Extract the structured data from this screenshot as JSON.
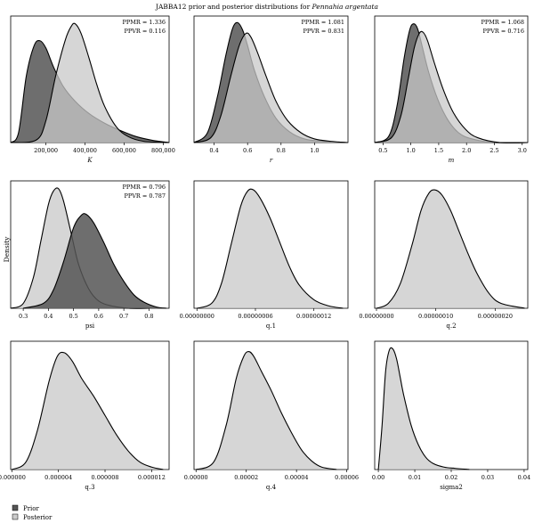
{
  "figure": {
    "title_plain": "JABBA12 prior and posterior distributions for ",
    "title_species": "Pennahia argentata",
    "ylabel": "Density"
  },
  "legend": {
    "items": [
      {
        "label": "Prior",
        "color": "#555555"
      },
      {
        "label": "Posterior",
        "color": "#cccccc"
      }
    ]
  },
  "colors": {
    "prior": "#555555",
    "posterior": "#c8c8c8",
    "outline": "#000000",
    "background": "#ffffff"
  },
  "chart_data": [
    {
      "type": "area",
      "xlabel": "K",
      "xlabel_italic": true,
      "xlim": [
        20000,
        830000
      ],
      "xticks": [
        200000,
        400000,
        600000,
        800000
      ],
      "xtick_labels": [
        "200,000",
        "400,000",
        "600,000",
        "800,000"
      ],
      "annotations": [
        "PPMR = 1.336",
        "PPVR = 0.116"
      ],
      "series": [
        {
          "name": "Prior",
          "role": "prior",
          "x": [
            20000,
            60000,
            100000,
            140000,
            170000,
            200000,
            240000,
            290000,
            350000,
            420000,
            500000,
            580000,
            660000,
            740000,
            830000
          ],
          "y": [
            0.0,
            0.08,
            0.55,
            0.8,
            0.84,
            0.78,
            0.62,
            0.46,
            0.34,
            0.24,
            0.16,
            0.1,
            0.05,
            0.02,
            0.0
          ]
        },
        {
          "name": "Posterior",
          "role": "posterior",
          "x": [
            20000,
            150000,
            200000,
            250000,
            300000,
            330000,
            350000,
            380000,
            420000,
            460000,
            500000,
            560000,
            620000,
            700000,
            830000
          ],
          "y": [
            0.0,
            0.02,
            0.18,
            0.55,
            0.85,
            0.96,
            0.98,
            0.9,
            0.7,
            0.48,
            0.3,
            0.13,
            0.05,
            0.01,
            0.0
          ]
        }
      ]
    },
    {
      "type": "area",
      "xlabel": "r",
      "xlabel_italic": true,
      "xlim": [
        0.28,
        1.2
      ],
      "xticks": [
        0.4,
        0.6,
        0.8,
        1.0
      ],
      "xtick_labels": [
        "0.4",
        "0.6",
        "0.8",
        "1.0"
      ],
      "annotations": [
        "PPMR = 1.081",
        "PPVR = 0.831"
      ],
      "series": [
        {
          "name": "Prior",
          "role": "prior",
          "x": [
            0.28,
            0.36,
            0.42,
            0.47,
            0.51,
            0.54,
            0.57,
            0.6,
            0.64,
            0.7,
            0.77,
            0.85,
            0.94,
            1.05,
            1.2
          ],
          "y": [
            0.0,
            0.08,
            0.38,
            0.72,
            0.94,
            0.99,
            0.93,
            0.8,
            0.6,
            0.38,
            0.2,
            0.09,
            0.03,
            0.01,
            0.0
          ]
        },
        {
          "name": "Posterior",
          "role": "posterior",
          "x": [
            0.28,
            0.38,
            0.44,
            0.5,
            0.55,
            0.59,
            0.62,
            0.66,
            0.71,
            0.77,
            0.84,
            0.92,
            1.0,
            1.1,
            1.2
          ],
          "y": [
            0.0,
            0.04,
            0.22,
            0.55,
            0.8,
            0.9,
            0.87,
            0.74,
            0.55,
            0.34,
            0.18,
            0.08,
            0.03,
            0.01,
            0.0
          ]
        }
      ]
    },
    {
      "type": "area",
      "xlabel": "m",
      "xlabel_italic": true,
      "xlim": [
        0.35,
        3.1
      ],
      "xticks": [
        0.5,
        1.0,
        1.5,
        2.0,
        2.5,
        3.0
      ],
      "xtick_labels": [
        "0.5",
        "1.0",
        "1.5",
        "2.0",
        "2.5",
        "3.0"
      ],
      "annotations": [
        "PPMR = 1.068",
        "PPVR = 0.716"
      ],
      "series": [
        {
          "name": "Prior",
          "role": "prior",
          "x": [
            0.35,
            0.6,
            0.75,
            0.88,
            0.98,
            1.05,
            1.12,
            1.2,
            1.32,
            1.48,
            1.66,
            1.86,
            2.1,
            2.5,
            3.1
          ],
          "y": [
            0.0,
            0.05,
            0.3,
            0.7,
            0.93,
            0.98,
            0.94,
            0.8,
            0.58,
            0.36,
            0.19,
            0.08,
            0.03,
            0.0,
            0.0
          ]
        },
        {
          "name": "Posterior",
          "role": "posterior",
          "x": [
            0.35,
            0.65,
            0.82,
            0.95,
            1.06,
            1.15,
            1.22,
            1.3,
            1.42,
            1.58,
            1.76,
            1.98,
            2.2,
            2.6,
            3.1
          ],
          "y": [
            0.0,
            0.04,
            0.22,
            0.52,
            0.78,
            0.9,
            0.91,
            0.84,
            0.66,
            0.44,
            0.25,
            0.11,
            0.04,
            0.0,
            0.0
          ]
        }
      ]
    },
    {
      "type": "area",
      "xlabel": "psi",
      "xlabel_italic": false,
      "xlim": [
        0.25,
        0.88
      ],
      "xticks": [
        0.3,
        0.4,
        0.5,
        0.6,
        0.7,
        0.8
      ],
      "xtick_labels": [
        "0.3",
        "0.4",
        "0.5",
        "0.6",
        "0.7",
        "0.8"
      ],
      "annotations": [
        "PPMR = 0.796",
        "PPVR = 0.787"
      ],
      "series": [
        {
          "name": "Posterior",
          "role": "posterior",
          "x": [
            0.25,
            0.3,
            0.34,
            0.37,
            0.4,
            0.42,
            0.44,
            0.46,
            0.49,
            0.52,
            0.56,
            0.6,
            0.65,
            0.72,
            0.8
          ],
          "y": [
            0.0,
            0.04,
            0.25,
            0.55,
            0.85,
            0.96,
            0.98,
            0.88,
            0.62,
            0.36,
            0.16,
            0.06,
            0.02,
            0.0,
            0.0
          ]
        },
        {
          "name": "Prior",
          "role": "prior",
          "x": [
            0.3,
            0.38,
            0.42,
            0.46,
            0.5,
            0.53,
            0.55,
            0.58,
            0.62,
            0.66,
            0.7,
            0.74,
            0.78,
            0.83,
            0.87
          ],
          "y": [
            0.0,
            0.04,
            0.15,
            0.38,
            0.66,
            0.76,
            0.77,
            0.7,
            0.54,
            0.36,
            0.22,
            0.11,
            0.05,
            0.01,
            0.0
          ]
        }
      ]
    },
    {
      "type": "area",
      "xlabel": "q.1",
      "xlabel_italic": false,
      "xlim": [
        -3e-09,
        1.55e-07
      ],
      "xticks": [
        0.0,
        6e-08,
        1.2e-07
      ],
      "xtick_labels": [
        "0.00000000",
        "0.00000006",
        "0.00000012"
      ],
      "annotations": [],
      "series": [
        {
          "name": "Posterior",
          "role": "posterior",
          "x": [
            0.0,
            1.5e-08,
            2.5e-08,
            3.5e-08,
            4.5e-08,
            5.2e-08,
            5.8e-08,
            6.5e-08,
            7.5e-08,
            8.5e-08,
            9.5e-08,
            1.05e-07,
            1.2e-07,
            1.35e-07,
            1.5e-07
          ],
          "y": [
            0.0,
            0.04,
            0.2,
            0.52,
            0.84,
            0.96,
            0.97,
            0.9,
            0.74,
            0.54,
            0.34,
            0.19,
            0.07,
            0.02,
            0.0
          ]
        }
      ]
    },
    {
      "type": "area",
      "xlabel": "q.2",
      "xlabel_italic": false,
      "xlim": [
        -3e-09,
        2.55e-07
      ],
      "xticks": [
        0.0,
        1e-07,
        2e-07
      ],
      "xtick_labels": [
        "0.00000000",
        "0.00000010",
        "0.00000020"
      ],
      "annotations": [],
      "series": [
        {
          "name": "Posterior",
          "role": "posterior",
          "x": [
            0.0,
            2e-08,
            4e-08,
            6e-08,
            7.5e-08,
            8.8e-08,
            9.8e-08,
            1.1e-07,
            1.25e-07,
            1.4e-07,
            1.55e-07,
            1.7e-07,
            1.9e-07,
            2.1e-07,
            2.5e-07
          ],
          "y": [
            0.0,
            0.04,
            0.2,
            0.52,
            0.8,
            0.94,
            0.97,
            0.93,
            0.8,
            0.62,
            0.44,
            0.28,
            0.12,
            0.04,
            0.0
          ]
        }
      ]
    },
    {
      "type": "area",
      "xlabel": "q.3",
      "xlabel_italic": false,
      "xlim": [
        -1e-07,
        1.35e-05
      ],
      "xticks": [
        0.0,
        4e-06,
        8e-06,
        1.2e-05
      ],
      "xtick_labels": [
        "0.000000",
        "0.000004",
        "0.000008",
        "0.000012"
      ],
      "annotations": [],
      "series": [
        {
          "name": "Posterior",
          "role": "posterior",
          "x": [
            0.0,
            1.2e-06,
            2.2e-06,
            3.2e-06,
            3.9e-06,
            4.5e-06,
            5.2e-06,
            6e-06,
            7e-06,
            8e-06,
            9e-06,
            1e-05,
            1.1e-05,
            1.2e-05,
            1.3e-05
          ],
          "y": [
            0.0,
            0.06,
            0.32,
            0.72,
            0.92,
            0.95,
            0.88,
            0.74,
            0.6,
            0.44,
            0.28,
            0.15,
            0.06,
            0.02,
            0.0
          ]
        }
      ]
    },
    {
      "type": "area",
      "xlabel": "q.4",
      "xlabel_italic": false,
      "xlim": [
        -8e-07,
        6.05e-05
      ],
      "xticks": [
        0.0,
        2e-05,
        4e-05,
        6e-05
      ],
      "xtick_labels": [
        "0.00000",
        "0.00002",
        "0.00004",
        "0.00006"
      ],
      "annotations": [],
      "series": [
        {
          "name": "Posterior",
          "role": "posterior",
          "x": [
            0.0,
            7e-06,
            1.2e-05,
            1.6e-05,
            1.9e-05,
            2.1e-05,
            2.3e-05,
            2.6e-05,
            3e-05,
            3.4e-05,
            3.8e-05,
            4.2e-05,
            4.6e-05,
            5e-05,
            5.6e-05
          ],
          "y": [
            0.0,
            0.06,
            0.36,
            0.74,
            0.92,
            0.96,
            0.92,
            0.8,
            0.64,
            0.46,
            0.3,
            0.16,
            0.07,
            0.02,
            0.0
          ]
        }
      ]
    },
    {
      "type": "area",
      "xlabel": "sigma2",
      "xlabel_italic": false,
      "xlim": [
        -0.001,
        0.041
      ],
      "xticks": [
        0.0,
        0.01,
        0.02,
        0.03,
        0.04
      ],
      "xtick_labels": [
        "0.00",
        "0.01",
        "0.02",
        "0.03",
        "0.04"
      ],
      "annotations": [],
      "series": [
        {
          "name": "Posterior",
          "role": "posterior",
          "x": [
            0.0,
            0.001,
            0.002,
            0.003,
            0.004,
            0.005,
            0.006,
            0.007,
            0.009,
            0.011,
            0.013,
            0.015,
            0.018,
            0.021,
            0.025
          ],
          "y": [
            0.0,
            0.35,
            0.8,
            0.97,
            0.98,
            0.9,
            0.75,
            0.6,
            0.36,
            0.2,
            0.1,
            0.05,
            0.02,
            0.01,
            0.0
          ]
        }
      ]
    }
  ]
}
